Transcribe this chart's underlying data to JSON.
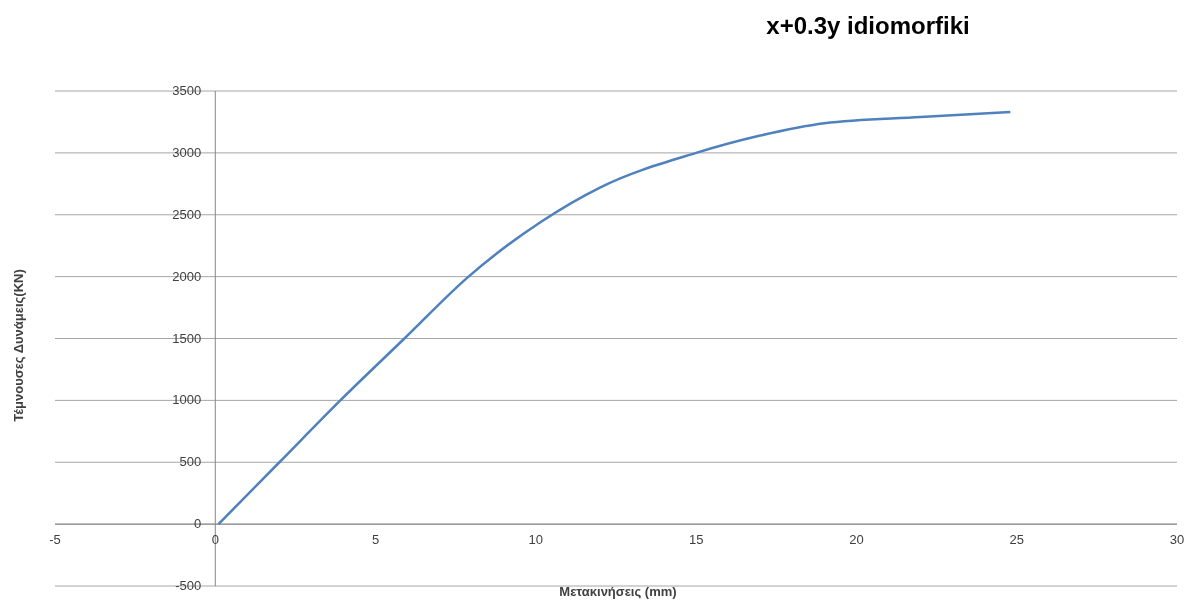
{
  "chart_data": {
    "type": "line",
    "title": "x+0.3y idiomorfiki",
    "xlabel": "Μετακινήσεις (mm)",
    "ylabel": "Τέμνουσες Δυνάμεις(KN)",
    "series": [
      {
        "color": "#4f81bd",
        "x": [
          0.1,
          2,
          3.9,
          5.9,
          7.9,
          10.2,
          12,
          15,
          17,
          19,
          22,
          24.8
        ],
        "values": [
          0,
          500,
          1000,
          1500,
          2000,
          2450,
          2720,
          3000,
          3140,
          3240,
          3290,
          3330
        ]
      }
    ],
    "xlim": [
      -5,
      30
    ],
    "xticks": [
      -5,
      0,
      5,
      10,
      15,
      20,
      25,
      30
    ],
    "ylim": [
      -500,
      3500
    ],
    "yticks": [
      -500,
      0,
      500,
      1000,
      1500,
      2000,
      2500,
      3000,
      3500
    ],
    "grid": "y",
    "legend": false,
    "marker": "none",
    "line_style": "solid"
  }
}
